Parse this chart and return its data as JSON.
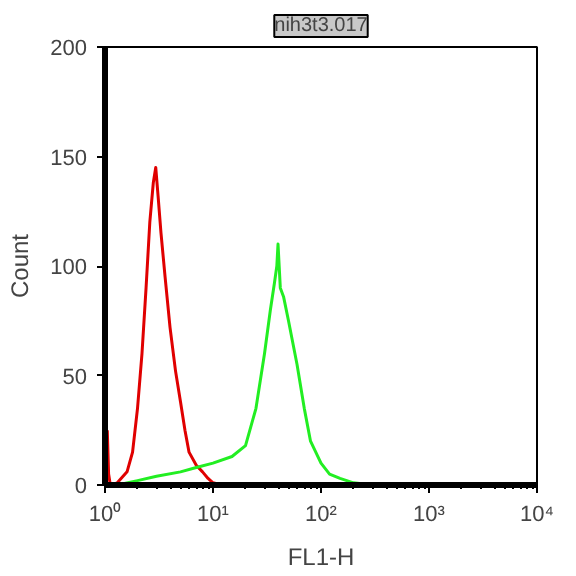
{
  "chart_data": {
    "type": "line",
    "title": "nih3t3.017",
    "xlabel": "FL1-H",
    "ylabel": "Count",
    "log": "x",
    "xlim": [
      1,
      10000
    ],
    "xticks": [
      {
        "value": 1,
        "label": "10⁰"
      },
      {
        "value": 10,
        "label": "10¹"
      },
      {
        "value": 100,
        "label": "10²"
      },
      {
        "value": 1000,
        "label": "10³"
      },
      {
        "value": 10000,
        "label": "10⁴"
      }
    ],
    "ylim": [
      0,
      200
    ],
    "yticks": [
      0,
      50,
      100,
      150,
      200
    ],
    "grid": false,
    "marker": "none",
    "line_style": "solid",
    "series": [
      {
        "color": "#e00000",
        "x": [
          1.05,
          1.08,
          1.12,
          1.3,
          1.6,
          1.8,
          2.0,
          2.2,
          2.4,
          2.6,
          2.8,
          2.95,
          3.1,
          3.3,
          3.6,
          4.0,
          4.5,
          5.0,
          5.5,
          6.0,
          7.0,
          8.0,
          9.0,
          10.0,
          12.0
        ],
        "values": [
          25,
          5,
          0,
          1,
          6,
          15,
          35,
          60,
          90,
          120,
          138,
          145,
          132,
          115,
          95,
          72,
          52,
          38,
          25,
          15,
          9,
          6,
          3,
          1,
          0
        ]
      },
      {
        "color": "#22ee22",
        "x": [
          1.3,
          2.0,
          3.0,
          5.0,
          7.0,
          10.0,
          15.0,
          20.0,
          25.0,
          30.0,
          34.0,
          37.0,
          39.0,
          40.0,
          42.0,
          45.0,
          50.0,
          60.0,
          70.0,
          80.0,
          100.0,
          120.0,
          150.0,
          200.0,
          300.0
        ],
        "values": [
          0,
          2,
          4,
          6,
          8,
          10,
          13,
          18,
          35,
          60,
          80,
          92,
          100,
          110,
          90,
          86,
          75,
          55,
          35,
          20,
          10,
          5,
          3,
          1,
          0
        ]
      }
    ]
  }
}
